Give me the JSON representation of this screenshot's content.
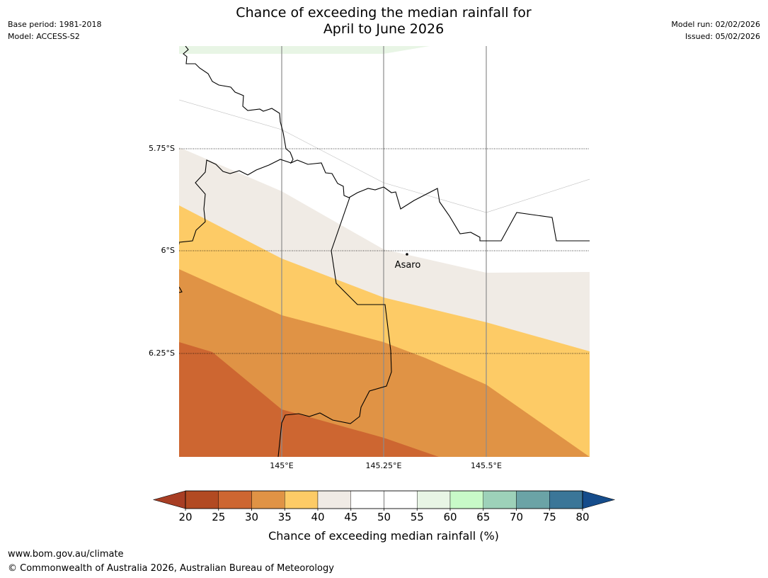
{
  "header": {
    "base_period": "Base period: 1981-2018",
    "model": "Model: ACCESS-S2",
    "model_run": "Model run: 02/02/2026",
    "issued": "Issued: 05/02/2026",
    "title_line1": "Chance of exceeding the median rainfall for",
    "title_line2": "April to June 2026"
  },
  "map": {
    "lat_labels": [
      "5.75°S",
      "6°S",
      "6.25°S"
    ],
    "lon_labels": [
      "145°E",
      "145.25°E",
      "145.5°E"
    ],
    "place": "Asaro",
    "bands": [
      {
        "range": "55-60",
        "color": "#e8f5e5"
      },
      {
        "range": "40-45",
        "color": "#f0ebe5"
      },
      {
        "range": "35-40",
        "color": "#fdcb66"
      },
      {
        "range": "30-35",
        "color": "#e09345"
      },
      {
        "range": "25-30",
        "color": "#cd6631"
      }
    ]
  },
  "colorbar": {
    "ticks": [
      "20",
      "25",
      "30",
      "35",
      "40",
      "45",
      "50",
      "55",
      "60",
      "65",
      "70",
      "75",
      "80"
    ],
    "colors": [
      "#a83e24",
      "#b24a22",
      "#cd6631",
      "#e09345",
      "#fdcb66",
      "#f0ebe5",
      "#ffffff",
      "#ffffff",
      "#e8f5e5",
      "#c8fac8",
      "#9dd1b9",
      "#6ba3a6",
      "#3b7698",
      "#154c8b"
    ],
    "label": "Chance of exceeding median rainfall (%)"
  },
  "footer": {
    "url": "www.bom.gov.au/climate",
    "copyright": "© Commonwealth of Australia 2026, Australian Bureau of Meteorology"
  }
}
